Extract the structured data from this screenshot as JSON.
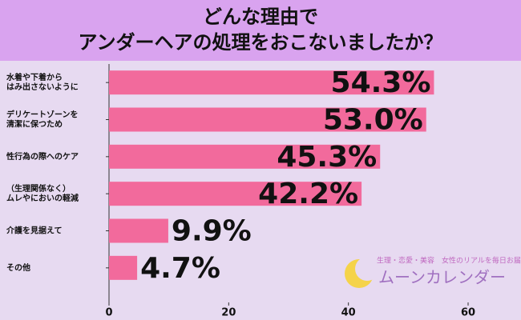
{
  "chart_data": {
    "type": "hbar",
    "title": [
      "どんな理由で",
      "アンダーヘアの処理をおこないましたか？"
    ],
    "categories": [
      "水着や下着から\nはみ出さないように",
      "デリケートゾーンを\n清潔に保つため",
      "性行為の際へのケア",
      "（生理関係なく）\nムレやにおいの軽減",
      "介護を見据えて",
      "その他"
    ],
    "values": [
      54.3,
      53.0,
      45.3,
      42.2,
      9.9,
      4.7
    ],
    "value_labels": [
      "54.3%",
      "53.0%",
      "45.3%",
      "42.2%",
      "9.9%",
      "4.7%"
    ],
    "color": "#f26a9c",
    "xlim": [
      0,
      60
    ],
    "xticks": [
      0,
      20,
      40,
      60
    ],
    "watermark": {
      "tagline": "生理・恋愛・美容　女性のリアルを毎日お届け♪",
      "brand": "ムーンカレンダー"
    }
  }
}
